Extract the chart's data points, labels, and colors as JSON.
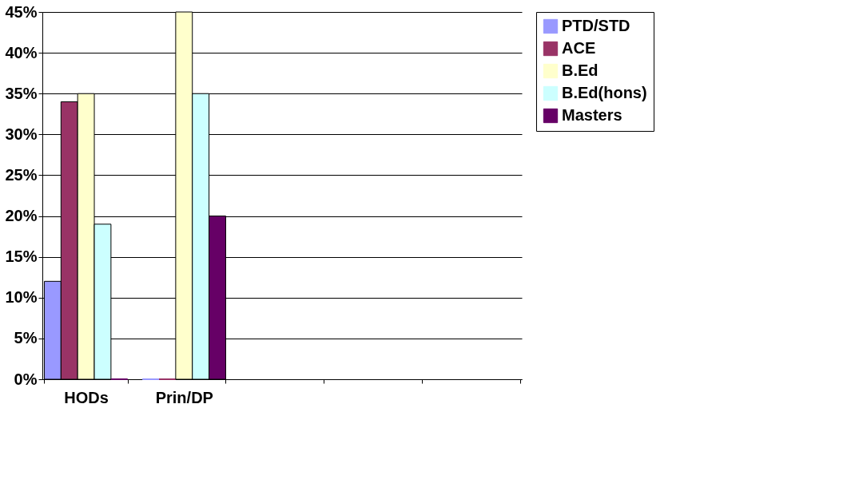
{
  "chart_data": {
    "type": "bar",
    "categories": [
      "HODs",
      "Prin/DP",
      null,
      null,
      null
    ],
    "series": [
      {
        "name": "PTD/STD",
        "color": "#9999ff",
        "values": [
          12,
          0,
          null,
          null,
          null
        ]
      },
      {
        "name": "ACE",
        "color": "#993366",
        "values": [
          34,
          0,
          null,
          null,
          null
        ]
      },
      {
        "name": "B.Ed",
        "color": "#ffffcc",
        "values": [
          35,
          45,
          null,
          null,
          null
        ]
      },
      {
        "name": "B.Ed(hons)",
        "color": "#ccffff",
        "values": [
          19,
          35,
          null,
          null,
          null
        ]
      },
      {
        "name": "Masters",
        "color": "#660066",
        "values": [
          0,
          20,
          null,
          null,
          null
        ]
      }
    ],
    "ylim": [
      0,
      45
    ],
    "yticks": [
      {
        "value": 0,
        "label": "0%"
      },
      {
        "value": 5,
        "label": "5%"
      },
      {
        "value": 10,
        "label": "10%"
      },
      {
        "value": 15,
        "label": "15%"
      },
      {
        "value": 20,
        "label": "20%"
      },
      {
        "value": 25,
        "label": "25%"
      },
      {
        "value": 30,
        "label": "30%"
      },
      {
        "value": 35,
        "label": "35%"
      },
      {
        "value": 40,
        "label": "40%"
      },
      {
        "value": 45,
        "label": "45%"
      }
    ],
    "grid": "y",
    "legend": "right"
  }
}
